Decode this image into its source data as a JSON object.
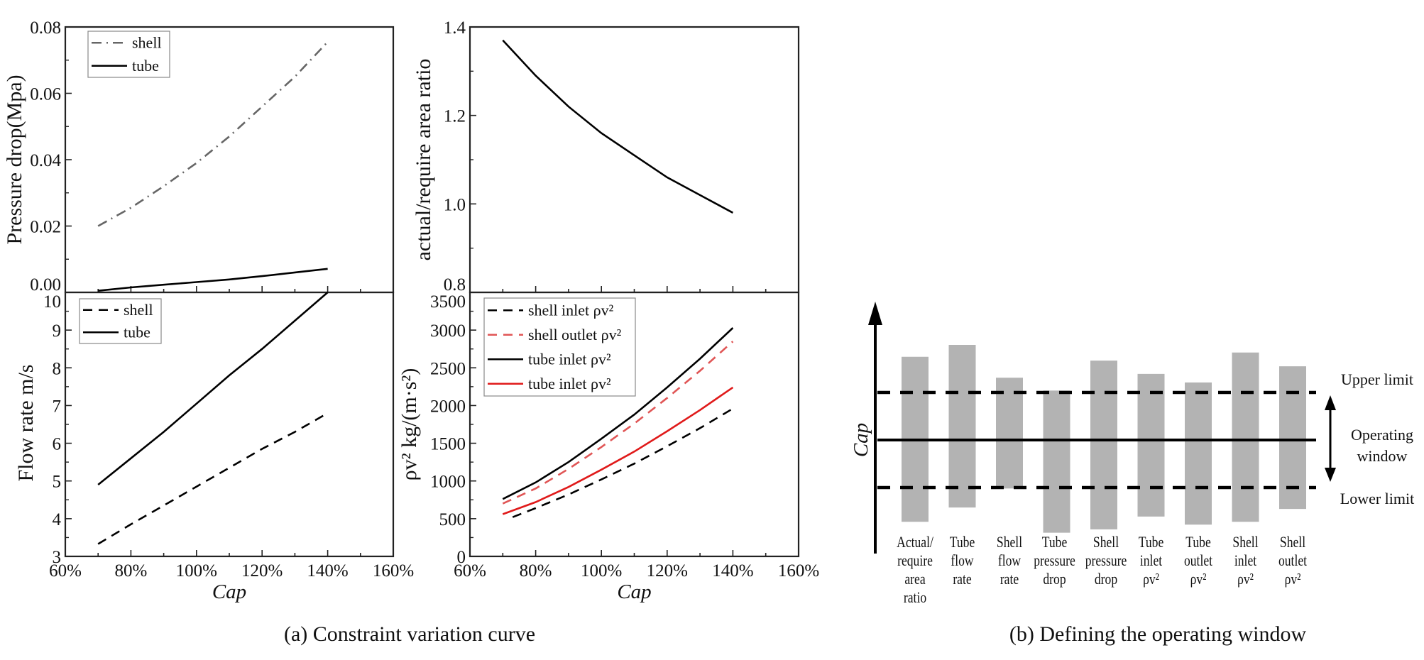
{
  "captions": {
    "a": "(a) Constraint variation curve",
    "b": "(b) Defining the operating window"
  },
  "chart_data": [
    {
      "type": "line",
      "title": "",
      "xlabel": "",
      "ylabel": "Pressure drop(Mpa)",
      "xlim": [
        60,
        160
      ],
      "ylim": [
        0,
        0.08
      ],
      "yticks": [
        0,
        0.02,
        0.04,
        0.06,
        0.08
      ],
      "ytick_labels": [
        "0.00",
        "0.02",
        "0.04",
        "0.06",
        "0.08"
      ],
      "legend_position": "top-left",
      "series": [
        {
          "name": "shell",
          "style": "dashdot",
          "color": "#666666",
          "x": [
            70,
            80,
            90,
            100,
            110,
            120,
            130,
            140
          ],
          "y": [
            0.02,
            0.0255,
            0.032,
            0.039,
            0.047,
            0.056,
            0.065,
            0.0755
          ]
        },
        {
          "name": "tube",
          "style": "solid",
          "color": "#000000",
          "x": [
            70,
            80,
            90,
            100,
            110,
            120,
            130,
            140
          ],
          "y": [
            0.0005,
            0.0015,
            0.0023,
            0.0031,
            0.0039,
            0.0049,
            0.006,
            0.0071
          ]
        }
      ]
    },
    {
      "type": "line",
      "title": "",
      "xlabel": "",
      "ylabel": "actual/require area ratio",
      "xlim": [
        60,
        160
      ],
      "ylim": [
        0.8,
        1.4
      ],
      "yticks": [
        0.8,
        1.0,
        1.2,
        1.4
      ],
      "ytick_labels": [
        "0.8",
        "1.0",
        "1.2",
        "1.4"
      ],
      "legend_position": "none",
      "series": [
        {
          "name": "actual/require area ratio",
          "style": "solid",
          "color": "#000000",
          "x": [
            70,
            80,
            90,
            100,
            110,
            120,
            130,
            140
          ],
          "y": [
            1.37,
            1.29,
            1.22,
            1.16,
            1.11,
            1.06,
            1.02,
            0.98
          ]
        }
      ]
    },
    {
      "type": "line",
      "title": "",
      "xlabel": "Cap",
      "ylabel": "Flow rate m/s",
      "xlim": [
        60,
        160
      ],
      "ylim": [
        3,
        10
      ],
      "xticks": [
        60,
        80,
        100,
        120,
        140,
        160
      ],
      "xtick_labels": [
        "60%",
        "80%",
        "100%",
        "120%",
        "140%",
        "160%"
      ],
      "yticks": [
        3,
        4,
        5,
        6,
        7,
        8,
        9,
        10
      ],
      "ytick_labels": [
        "3",
        "4",
        "5",
        "6",
        "7",
        "8",
        "9",
        "10"
      ],
      "legend_position": "top-left",
      "series": [
        {
          "name": "shell",
          "style": "dash",
          "color": "#000000",
          "x": [
            70,
            80,
            90,
            100,
            110,
            120,
            130,
            140
          ],
          "y": [
            3.33,
            3.85,
            4.35,
            4.85,
            5.35,
            5.85,
            6.3,
            6.8
          ]
        },
        {
          "name": "tube",
          "style": "solid",
          "color": "#000000",
          "x": [
            70,
            80,
            90,
            100,
            110,
            120,
            130,
            140
          ],
          "y": [
            4.9,
            5.6,
            6.3,
            7.05,
            7.8,
            8.5,
            9.25,
            10.0
          ]
        }
      ]
    },
    {
      "type": "line",
      "title": "",
      "xlabel": "Cap",
      "ylabel": "ρv² kg/(m·s²)",
      "xlim": [
        60,
        160
      ],
      "ylim": [
        0,
        3500
      ],
      "xticks": [
        60,
        80,
        100,
        120,
        140,
        160
      ],
      "xtick_labels": [
        "60%",
        "80%",
        "100%",
        "120%",
        "140%",
        "160%"
      ],
      "yticks": [
        0,
        500,
        1000,
        1500,
        2000,
        2500,
        3000,
        3500
      ],
      "ytick_labels": [
        "0",
        "500",
        "1000",
        "1500",
        "2000",
        "2500",
        "3000",
        "3500"
      ],
      "legend_position": "top-left",
      "series": [
        {
          "name": "shell inlet ρv²",
          "style": "dash",
          "color": "#000000",
          "x": [
            73,
            80,
            90,
            100,
            110,
            120,
            130,
            140
          ],
          "y": [
            520,
            640,
            820,
            1020,
            1230,
            1460,
            1700,
            1960
          ]
        },
        {
          "name": "shell outlet ρv²",
          "style": "dash",
          "color": "#e05555",
          "x": [
            70,
            80,
            90,
            100,
            110,
            120,
            130,
            140
          ],
          "y": [
            700,
            900,
            1160,
            1450,
            1760,
            2100,
            2460,
            2850
          ]
        },
        {
          "name": "tube inlet ρv²",
          "style": "solid",
          "color": "#000000",
          "x": [
            70,
            80,
            90,
            100,
            110,
            120,
            130,
            140
          ],
          "y": [
            760,
            980,
            1250,
            1560,
            1880,
            2240,
            2620,
            3030
          ]
        },
        {
          "name": "tube inlet ρv²",
          "style": "solid",
          "color": "#e01a1a",
          "x": [
            70,
            80,
            90,
            100,
            110,
            120,
            130,
            140
          ],
          "y": [
            560,
            720,
            920,
            1150,
            1390,
            1660,
            1940,
            2240
          ]
        }
      ]
    }
  ],
  "operating_window": {
    "axis_label": "Cap",
    "upper_label": "Upper limit",
    "window_label": [
      "Operating",
      "window"
    ],
    "lower_label": "Lower limit",
    "limits": {
      "upper": 1,
      "operating": 0,
      "lower": -1
    },
    "bar_color": "#b3b3b3",
    "bars": [
      {
        "label": [
          "Actual/",
          "require",
          "area",
          "ratio"
        ],
        "top": 1.75,
        "bottom": -1.72
      },
      {
        "label": [
          "Tube",
          "flow",
          "rate"
        ],
        "top": 2.0,
        "bottom": -1.42
      },
      {
        "label": [
          "Shell",
          "flow",
          "rate"
        ],
        "top": 1.31,
        "bottom": -1.02
      },
      {
        "label": [
          "Tube",
          "pressure",
          "drop"
        ],
        "top": 1.04,
        "bottom": -1.95
      },
      {
        "label": [
          "Shell",
          "pressure",
          "drop"
        ],
        "top": 1.67,
        "bottom": -1.88
      },
      {
        "label": [
          "Tube",
          "inlet",
          "ρv²"
        ],
        "top": 1.39,
        "bottom": -1.61
      },
      {
        "label": [
          "Tube",
          "outlet",
          "ρv²"
        ],
        "top": 1.21,
        "bottom": -1.78
      },
      {
        "label": [
          "Shell",
          "inlet",
          "ρv²"
        ],
        "top": 1.84,
        "bottom": -1.72
      },
      {
        "label": [
          "Shell",
          "outlet",
          "ρv²"
        ],
        "top": 1.55,
        "bottom": -1.45
      }
    ]
  }
}
